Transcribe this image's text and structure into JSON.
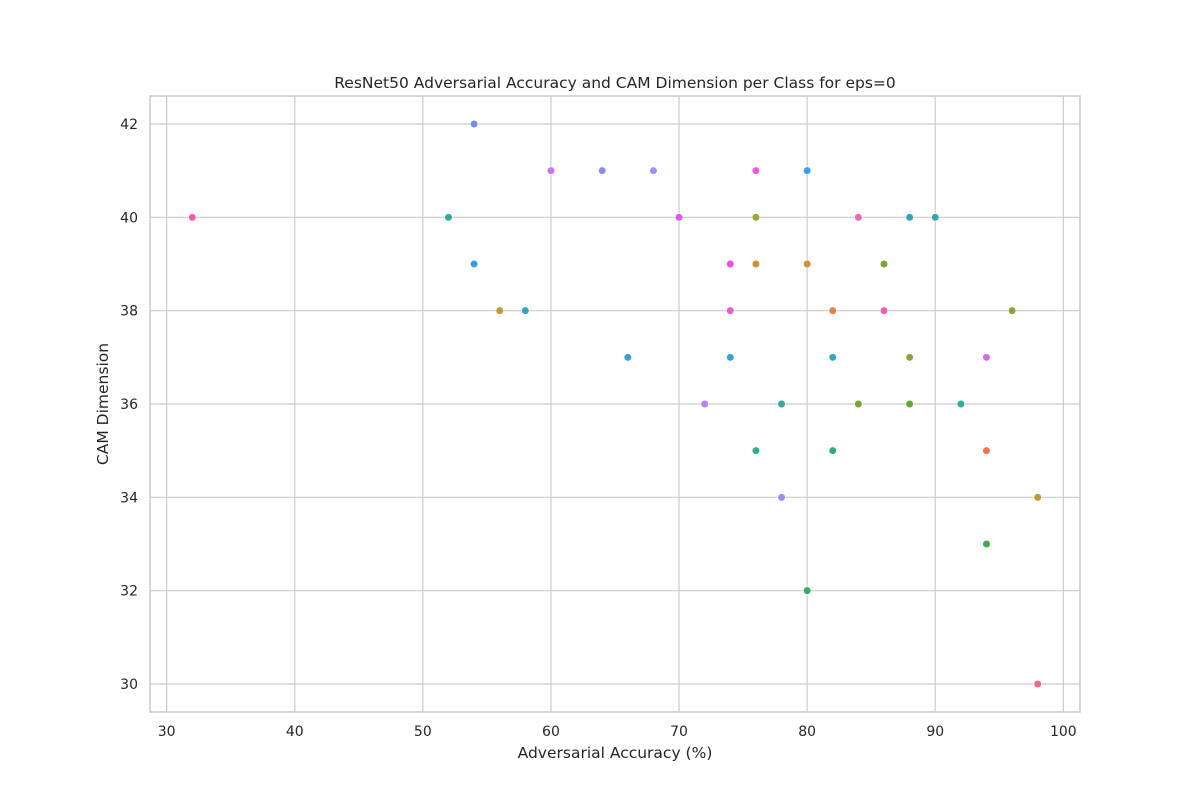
{
  "chart_data": {
    "type": "scatter",
    "title": "ResNet50 Adversarial Accuracy and CAM Dimension per Class for eps=0",
    "xlabel": "Adversarial Accuracy (%)",
    "ylabel": "CAM Dimension",
    "xlim": [
      28.7,
      101.3
    ],
    "ylim": [
      29.4,
      42.6
    ],
    "xticks": [
      30,
      40,
      50,
      60,
      70,
      80,
      90,
      100
    ],
    "yticks": [
      30,
      32,
      34,
      36,
      38,
      40,
      42
    ],
    "grid": true,
    "legend": "none",
    "points": [
      {
        "x": 54,
        "y": 42,
        "color": "#6e8ff2"
      },
      {
        "x": 60,
        "y": 41,
        "color": "#cc73f2"
      },
      {
        "x": 64,
        "y": 41,
        "color": "#8c8cf2"
      },
      {
        "x": 68,
        "y": 41,
        "color": "#a98cf2"
      },
      {
        "x": 76,
        "y": 41,
        "color": "#ec5bd7"
      },
      {
        "x": 80,
        "y": 41,
        "color": "#3f9de8"
      },
      {
        "x": 32,
        "y": 40,
        "color": "#f05eac"
      },
      {
        "x": 52,
        "y": 40,
        "color": "#31aa9a"
      },
      {
        "x": 70,
        "y": 40,
        "color": "#e552ee"
      },
      {
        "x": 76,
        "y": 40,
        "color": "#a0a233"
      },
      {
        "x": 84,
        "y": 40,
        "color": "#f066b6"
      },
      {
        "x": 88,
        "y": 40,
        "color": "#2fa3bb"
      },
      {
        "x": 90,
        "y": 40,
        "color": "#30a8ae"
      },
      {
        "x": 54,
        "y": 39,
        "color": "#35a0e0"
      },
      {
        "x": 74,
        "y": 39,
        "color": "#ea50e0"
      },
      {
        "x": 76,
        "y": 39,
        "color": "#cd8c38"
      },
      {
        "x": 80,
        "y": 39,
        "color": "#d68a35"
      },
      {
        "x": 86,
        "y": 39,
        "color": "#77a832"
      },
      {
        "x": 56,
        "y": 38,
        "color": "#c49437"
      },
      {
        "x": 58,
        "y": 38,
        "color": "#33a3c2"
      },
      {
        "x": 74,
        "y": 38,
        "color": "#e95ad5"
      },
      {
        "x": 82,
        "y": 38,
        "color": "#ee7f45"
      },
      {
        "x": 86,
        "y": 38,
        "color": "#ee5fb5"
      },
      {
        "x": 96,
        "y": 38,
        "color": "#8aa531"
      },
      {
        "x": 66,
        "y": 37,
        "color": "#33a4cc"
      },
      {
        "x": 74,
        "y": 37,
        "color": "#36a2d8"
      },
      {
        "x": 82,
        "y": 37,
        "color": "#32a6be"
      },
      {
        "x": 88,
        "y": 37,
        "color": "#93a132"
      },
      {
        "x": 94,
        "y": 37,
        "color": "#d966ee"
      },
      {
        "x": 72,
        "y": 36,
        "color": "#b482f2"
      },
      {
        "x": 78,
        "y": 36,
        "color": "#31a8a6"
      },
      {
        "x": 84,
        "y": 36,
        "color": "#74a832"
      },
      {
        "x": 88,
        "y": 36,
        "color": "#5bab34"
      },
      {
        "x": 92,
        "y": 36,
        "color": "#30aa9c"
      },
      {
        "x": 76,
        "y": 35,
        "color": "#32aa8a"
      },
      {
        "x": 82,
        "y": 35,
        "color": "#31ab86"
      },
      {
        "x": 94,
        "y": 35,
        "color": "#ef7650"
      },
      {
        "x": 78,
        "y": 34,
        "color": "#9a8cf1"
      },
      {
        "x": 98,
        "y": 34,
        "color": "#bc9a36"
      },
      {
        "x": 94,
        "y": 33,
        "color": "#3aae4f"
      },
      {
        "x": 80,
        "y": 32,
        "color": "#33ad63"
      },
      {
        "x": 98,
        "y": 30,
        "color": "#f0678a"
      }
    ]
  }
}
